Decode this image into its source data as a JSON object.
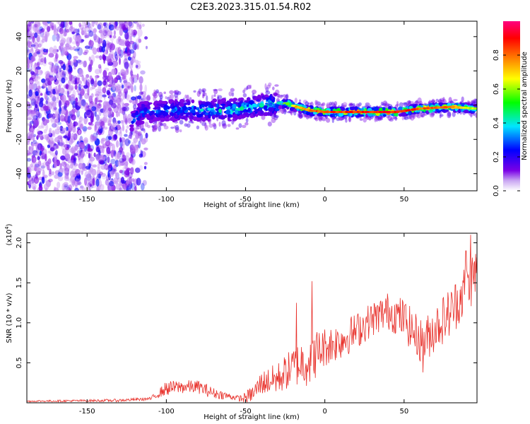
{
  "title": "C2E3.2023.315.01.54.R02",
  "chart_data": [
    {
      "type": "heatmap",
      "xlabel": "Height of straight line (km)",
      "ylabel": "Frequency (Hz)",
      "xlim": [
        -188,
        96
      ],
      "ylim": [
        -50,
        49
      ],
      "xticks": [
        -150,
        -100,
        -50,
        0,
        50
      ],
      "yticks": [
        -40,
        -20,
        0,
        20,
        40
      ],
      "colorbar": {
        "label": "Normalized spectral amplitude",
        "range": [
          0,
          1
        ],
        "ticks": [
          "0.0",
          "0.2",
          "0.4",
          "0.6",
          "0.8"
        ],
        "tick_values": [
          0.0,
          0.2,
          0.4,
          0.6,
          0.8
        ],
        "colormap": [
          "#ffffff",
          "#7a00e6",
          "#0000ff",
          "#00e5ff",
          "#00ff00",
          "#ffff00",
          "#ff8000",
          "#ff0000",
          "#ff0080"
        ]
      },
      "grid": false,
      "ridge_center": [
        {
          "x": -125,
          "y": -12
        },
        {
          "x": -115,
          "y": -4
        },
        {
          "x": -100,
          "y": -3
        },
        {
          "x": -80,
          "y": -3
        },
        {
          "x": -60,
          "y": -3
        },
        {
          "x": -40,
          "y": 0
        },
        {
          "x": -25,
          "y": 1
        },
        {
          "x": -10,
          "y": -3
        },
        {
          "x": 0,
          "y": -4
        },
        {
          "x": 20,
          "y": -4
        },
        {
          "x": 45,
          "y": -4
        },
        {
          "x": 60,
          "y": -2
        },
        {
          "x": 80,
          "y": -1
        },
        {
          "x": 95,
          "y": -2
        }
      ],
      "ridge_amplitude": [
        {
          "x": -115,
          "a": 0.35
        },
        {
          "x": -90,
          "a": 0.4
        },
        {
          "x": -65,
          "a": 0.45
        },
        {
          "x": -45,
          "a": 0.45
        },
        {
          "x": -30,
          "a": 0.55
        },
        {
          "x": -15,
          "a": 0.8
        },
        {
          "x": 0,
          "a": 0.85
        },
        {
          "x": 20,
          "a": 0.9
        },
        {
          "x": 45,
          "a": 0.95
        },
        {
          "x": 60,
          "a": 0.85
        },
        {
          "x": 80,
          "a": 0.8
        },
        {
          "x": 95,
          "a": 0.6
        }
      ]
    },
    {
      "type": "line",
      "xlabel": "Height of straight line (km)",
      "ylabel": "SNR (10 * v/v)",
      "exponent_label": "(x10",
      "exponent_power": "4",
      "exponent_close": ")",
      "xlim": [
        -188,
        96
      ],
      "ylim": [
        0,
        2.12
      ],
      "xticks": [
        -150,
        -100,
        -50,
        0,
        50
      ],
      "yticks": [
        0.5,
        1.0,
        1.5,
        2.0
      ],
      "ytick_labels": [
        "0.5",
        "1.0",
        "1.5",
        "2.0"
      ],
      "color": "#e8302a",
      "grid": false,
      "trend": [
        {
          "x": -188,
          "y": 0.02
        },
        {
          "x": -130,
          "y": 0.03
        },
        {
          "x": -110,
          "y": 0.05
        },
        {
          "x": -100,
          "y": 0.18
        },
        {
          "x": -90,
          "y": 0.2
        },
        {
          "x": -80,
          "y": 0.2
        },
        {
          "x": -70,
          "y": 0.12
        },
        {
          "x": -60,
          "y": 0.08
        },
        {
          "x": -52,
          "y": 0.05
        },
        {
          "x": -45,
          "y": 0.12
        },
        {
          "x": -40,
          "y": 0.25
        },
        {
          "x": -30,
          "y": 0.3
        },
        {
          "x": -20,
          "y": 0.45
        },
        {
          "x": -10,
          "y": 0.55
        },
        {
          "x": 0,
          "y": 0.7
        },
        {
          "x": 10,
          "y": 0.78
        },
        {
          "x": 20,
          "y": 0.9
        },
        {
          "x": 30,
          "y": 1.05
        },
        {
          "x": 40,
          "y": 1.15
        },
        {
          "x": 50,
          "y": 1.05
        },
        {
          "x": 55,
          "y": 0.9
        },
        {
          "x": 62,
          "y": 0.75
        },
        {
          "x": 70,
          "y": 0.95
        },
        {
          "x": 80,
          "y": 1.15
        },
        {
          "x": 88,
          "y": 1.4
        },
        {
          "x": 96,
          "y": 1.65
        }
      ],
      "noise": [
        {
          "x": -188,
          "n": 0.01
        },
        {
          "x": -110,
          "n": 0.02
        },
        {
          "x": -100,
          "n": 0.09
        },
        {
          "x": -75,
          "n": 0.08
        },
        {
          "x": -55,
          "n": 0.03
        },
        {
          "x": -40,
          "n": 0.15
        },
        {
          "x": -20,
          "n": 0.25
        },
        {
          "x": -10,
          "n": 0.35
        },
        {
          "x": 0,
          "n": 0.25
        },
        {
          "x": 30,
          "n": 0.22
        },
        {
          "x": 60,
          "n": 0.28
        },
        {
          "x": 96,
          "n": 0.35
        }
      ],
      "peaks": [
        {
          "x": -8,
          "y": 1.52
        },
        {
          "x": -18,
          "y": 1.25
        },
        {
          "x": 92,
          "y": 2.1
        },
        {
          "x": 89,
          "y": 1.9
        },
        {
          "x": 62,
          "y": 0.38
        }
      ]
    }
  ]
}
